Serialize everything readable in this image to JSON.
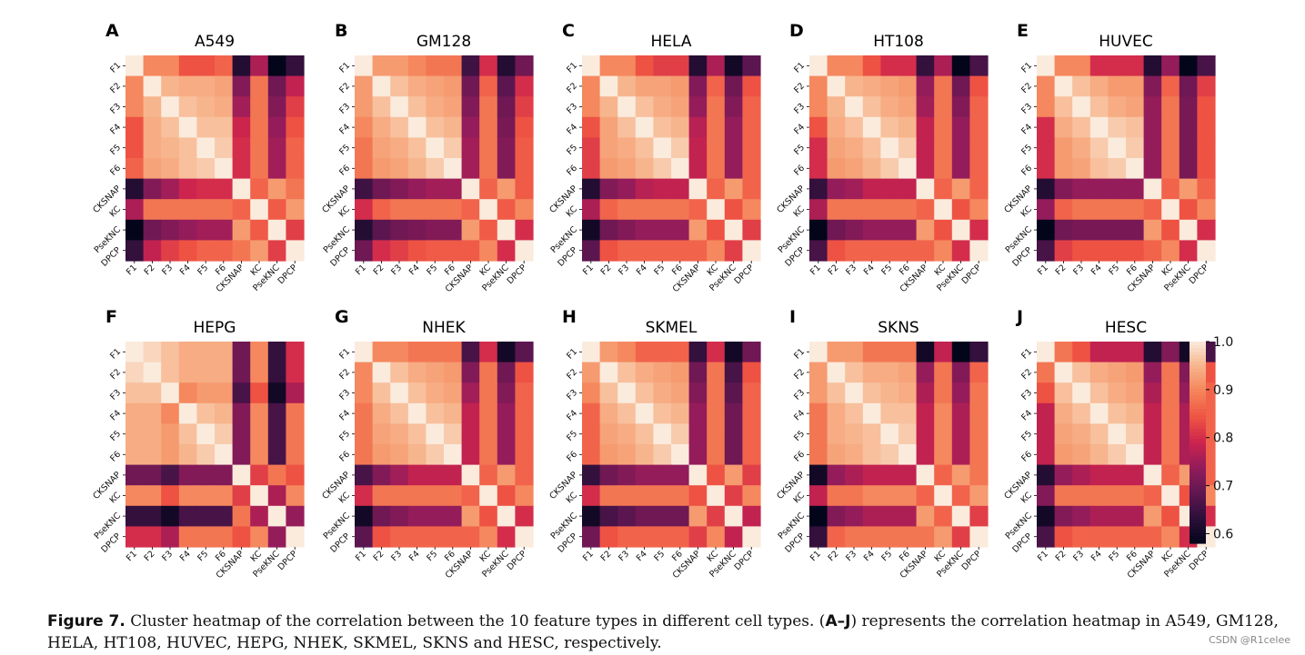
{
  "features": [
    "F1",
    "F2",
    "F3",
    "F4",
    "F5",
    "F6",
    "CKSNAP",
    "KC",
    "PseKNC",
    "DPCP"
  ],
  "colorbar": {
    "ticks": [
      "1.0",
      "0.9",
      "0.8",
      "0.7",
      "0.6"
    ],
    "vmin": 0.58,
    "vmax": 1.0
  },
  "chart_data": [
    {
      "type": "heatmap",
      "letter": "A",
      "title": "A549",
      "matrix": [
        [
          1,
          0.9,
          0.9,
          0.84,
          0.84,
          0.86,
          0.62,
          0.76,
          0.58,
          0.64
        ],
        [
          0.9,
          1,
          0.95,
          0.94,
          0.94,
          0.93,
          0.72,
          0.88,
          0.7,
          0.78
        ],
        [
          0.9,
          0.95,
          1,
          0.96,
          0.95,
          0.94,
          0.75,
          0.88,
          0.72,
          0.82
        ],
        [
          0.84,
          0.94,
          0.96,
          1,
          0.96,
          0.96,
          0.79,
          0.88,
          0.74,
          0.84
        ],
        [
          0.84,
          0.94,
          0.95,
          0.96,
          1,
          0.97,
          0.8,
          0.88,
          0.75,
          0.86
        ],
        [
          0.86,
          0.93,
          0.94,
          0.96,
          0.97,
          1,
          0.8,
          0.88,
          0.75,
          0.86
        ],
        [
          0.62,
          0.72,
          0.75,
          0.79,
          0.8,
          0.8,
          1,
          0.86,
          0.92,
          0.88
        ],
        [
          0.76,
          0.88,
          0.88,
          0.88,
          0.88,
          0.88,
          0.86,
          1,
          0.85,
          0.92
        ],
        [
          0.58,
          0.7,
          0.72,
          0.74,
          0.75,
          0.75,
          0.92,
          0.85,
          1,
          0.82
        ],
        [
          0.64,
          0.78,
          0.82,
          0.84,
          0.86,
          0.86,
          0.88,
          0.92,
          0.82,
          1
        ]
      ]
    },
    {
      "type": "heatmap",
      "letter": "B",
      "title": "GM128",
      "matrix": [
        [
          1,
          0.92,
          0.92,
          0.9,
          0.88,
          0.88,
          0.65,
          0.8,
          0.62,
          0.7
        ],
        [
          0.92,
          1,
          0.96,
          0.94,
          0.93,
          0.92,
          0.7,
          0.86,
          0.68,
          0.8
        ],
        [
          0.92,
          0.96,
          1,
          0.96,
          0.94,
          0.93,
          0.72,
          0.88,
          0.7,
          0.82
        ],
        [
          0.9,
          0.94,
          0.96,
          1,
          0.96,
          0.95,
          0.74,
          0.88,
          0.71,
          0.84
        ],
        [
          0.88,
          0.93,
          0.94,
          0.96,
          1,
          0.97,
          0.75,
          0.88,
          0.72,
          0.85
        ],
        [
          0.88,
          0.92,
          0.93,
          0.95,
          0.97,
          1,
          0.75,
          0.88,
          0.72,
          0.85
        ],
        [
          0.65,
          0.7,
          0.72,
          0.74,
          0.75,
          0.75,
          1,
          0.86,
          0.92,
          0.85
        ],
        [
          0.8,
          0.86,
          0.88,
          0.88,
          0.88,
          0.88,
          0.86,
          1,
          0.85,
          0.9
        ],
        [
          0.62,
          0.68,
          0.7,
          0.71,
          0.72,
          0.72,
          0.92,
          0.85,
          1,
          0.8
        ],
        [
          0.7,
          0.8,
          0.82,
          0.84,
          0.85,
          0.85,
          0.85,
          0.9,
          0.8,
          1
        ]
      ]
    },
    {
      "type": "heatmap",
      "letter": "C",
      "title": "HELA",
      "matrix": [
        [
          1,
          0.9,
          0.9,
          0.84,
          0.82,
          0.82,
          0.62,
          0.76,
          0.6,
          0.68
        ],
        [
          0.9,
          1,
          0.95,
          0.93,
          0.93,
          0.92,
          0.72,
          0.86,
          0.7,
          0.84
        ],
        [
          0.9,
          0.95,
          1,
          0.96,
          0.94,
          0.93,
          0.74,
          0.88,
          0.72,
          0.86
        ],
        [
          0.84,
          0.93,
          0.96,
          1,
          0.96,
          0.95,
          0.77,
          0.88,
          0.74,
          0.86
        ],
        [
          0.82,
          0.93,
          0.94,
          0.96,
          1,
          0.97,
          0.78,
          0.88,
          0.74,
          0.86
        ],
        [
          0.82,
          0.92,
          0.93,
          0.95,
          0.97,
          1,
          0.78,
          0.88,
          0.74,
          0.86
        ],
        [
          0.62,
          0.72,
          0.74,
          0.77,
          0.78,
          0.78,
          1,
          0.86,
          0.92,
          0.86
        ],
        [
          0.76,
          0.86,
          0.88,
          0.88,
          0.88,
          0.88,
          0.86,
          1,
          0.84,
          0.9
        ],
        [
          0.6,
          0.7,
          0.72,
          0.74,
          0.74,
          0.74,
          0.92,
          0.84,
          1,
          0.82
        ],
        [
          0.68,
          0.84,
          0.86,
          0.86,
          0.86,
          0.86,
          0.86,
          0.9,
          0.82,
          1
        ]
      ]
    },
    {
      "type": "heatmap",
      "letter": "D",
      "title": "HT108",
      "matrix": [
        [
          1,
          0.9,
          0.9,
          0.84,
          0.8,
          0.8,
          0.64,
          0.76,
          0.58,
          0.66
        ],
        [
          0.9,
          1,
          0.95,
          0.94,
          0.93,
          0.92,
          0.74,
          0.88,
          0.7,
          0.84
        ],
        [
          0.9,
          0.95,
          1,
          0.96,
          0.94,
          0.93,
          0.75,
          0.88,
          0.72,
          0.86
        ],
        [
          0.84,
          0.94,
          0.96,
          1,
          0.96,
          0.95,
          0.78,
          0.88,
          0.74,
          0.86
        ],
        [
          0.8,
          0.93,
          0.94,
          0.96,
          1,
          0.97,
          0.78,
          0.88,
          0.74,
          0.86
        ],
        [
          0.8,
          0.92,
          0.93,
          0.95,
          0.97,
          1,
          0.78,
          0.88,
          0.74,
          0.86
        ],
        [
          0.64,
          0.74,
          0.75,
          0.78,
          0.78,
          0.78,
          1,
          0.86,
          0.92,
          0.86
        ],
        [
          0.76,
          0.88,
          0.88,
          0.88,
          0.88,
          0.88,
          0.86,
          1,
          0.84,
          0.9
        ],
        [
          0.58,
          0.7,
          0.72,
          0.74,
          0.74,
          0.74,
          0.92,
          0.84,
          1,
          0.8
        ],
        [
          0.66,
          0.84,
          0.86,
          0.86,
          0.86,
          0.86,
          0.86,
          0.9,
          0.8,
          1
        ]
      ]
    },
    {
      "type": "heatmap",
      "letter": "E",
      "title": "HUVEC",
      "matrix": [
        [
          1,
          0.9,
          0.9,
          0.8,
          0.8,
          0.8,
          0.62,
          0.74,
          0.58,
          0.66
        ],
        [
          0.9,
          1,
          0.96,
          0.94,
          0.92,
          0.92,
          0.72,
          0.86,
          0.7,
          0.82
        ],
        [
          0.9,
          0.96,
          1,
          0.96,
          0.94,
          0.93,
          0.74,
          0.88,
          0.71,
          0.84
        ],
        [
          0.8,
          0.94,
          0.96,
          1,
          0.97,
          0.96,
          0.74,
          0.88,
          0.71,
          0.84
        ],
        [
          0.8,
          0.92,
          0.94,
          0.97,
          1,
          0.97,
          0.74,
          0.88,
          0.71,
          0.84
        ],
        [
          0.8,
          0.92,
          0.93,
          0.96,
          0.97,
          1,
          0.74,
          0.88,
          0.71,
          0.84
        ],
        [
          0.62,
          0.72,
          0.74,
          0.74,
          0.74,
          0.74,
          1,
          0.86,
          0.92,
          0.86
        ],
        [
          0.74,
          0.86,
          0.88,
          0.88,
          0.88,
          0.88,
          0.86,
          1,
          0.84,
          0.9
        ],
        [
          0.58,
          0.7,
          0.71,
          0.71,
          0.71,
          0.71,
          0.92,
          0.84,
          1,
          0.8
        ],
        [
          0.66,
          0.82,
          0.84,
          0.84,
          0.84,
          0.84,
          0.86,
          0.9,
          0.8,
          1
        ]
      ]
    },
    {
      "type": "heatmap",
      "letter": "F",
      "title": "HEPG",
      "matrix": [
        [
          1,
          0.98,
          0.96,
          0.94,
          0.94,
          0.94,
          0.7,
          0.9,
          0.64,
          0.8
        ],
        [
          0.98,
          1,
          0.96,
          0.94,
          0.94,
          0.94,
          0.7,
          0.9,
          0.64,
          0.8
        ],
        [
          0.96,
          0.96,
          1,
          0.9,
          0.92,
          0.92,
          0.66,
          0.84,
          0.6,
          0.76
        ],
        [
          0.94,
          0.94,
          0.9,
          1,
          0.96,
          0.95,
          0.72,
          0.9,
          0.66,
          0.88
        ],
        [
          0.94,
          0.94,
          0.92,
          0.96,
          1,
          0.97,
          0.72,
          0.9,
          0.66,
          0.88
        ],
        [
          0.94,
          0.94,
          0.92,
          0.95,
          0.97,
          1,
          0.72,
          0.9,
          0.66,
          0.88
        ],
        [
          0.7,
          0.7,
          0.66,
          0.72,
          0.72,
          0.72,
          1,
          0.82,
          0.88,
          0.84
        ],
        [
          0.9,
          0.9,
          0.84,
          0.9,
          0.9,
          0.9,
          0.82,
          1,
          0.76,
          0.9
        ],
        [
          0.64,
          0.64,
          0.6,
          0.66,
          0.66,
          0.66,
          0.88,
          0.76,
          1,
          0.74
        ],
        [
          0.8,
          0.8,
          0.76,
          0.88,
          0.88,
          0.88,
          0.84,
          0.9,
          0.74,
          1
        ]
      ]
    },
    {
      "type": "heatmap",
      "letter": "G",
      "title": "NHEK",
      "matrix": [
        [
          1,
          0.9,
          0.9,
          0.88,
          0.88,
          0.88,
          0.66,
          0.8,
          0.6,
          0.68
        ],
        [
          0.9,
          1,
          0.96,
          0.94,
          0.93,
          0.92,
          0.72,
          0.88,
          0.7,
          0.84
        ],
        [
          0.9,
          0.96,
          1,
          0.96,
          0.94,
          0.93,
          0.75,
          0.88,
          0.72,
          0.86
        ],
        [
          0.88,
          0.94,
          0.96,
          1,
          0.96,
          0.95,
          0.78,
          0.88,
          0.74,
          0.86
        ],
        [
          0.88,
          0.93,
          0.94,
          0.96,
          1,
          0.97,
          0.78,
          0.88,
          0.74,
          0.86
        ],
        [
          0.88,
          0.92,
          0.93,
          0.95,
          0.97,
          1,
          0.78,
          0.88,
          0.74,
          0.86
        ],
        [
          0.66,
          0.72,
          0.75,
          0.78,
          0.78,
          0.78,
          1,
          0.86,
          0.92,
          0.86
        ],
        [
          0.8,
          0.88,
          0.88,
          0.88,
          0.88,
          0.88,
          0.86,
          1,
          0.84,
          0.9
        ],
        [
          0.6,
          0.7,
          0.72,
          0.74,
          0.74,
          0.74,
          0.92,
          0.84,
          1,
          0.8
        ],
        [
          0.68,
          0.84,
          0.86,
          0.86,
          0.86,
          0.86,
          0.86,
          0.9,
          0.8,
          1
        ]
      ]
    },
    {
      "type": "heatmap",
      "letter": "H",
      "title": "SKMEL",
      "matrix": [
        [
          1,
          0.92,
          0.9,
          0.86,
          0.86,
          0.86,
          0.64,
          0.8,
          0.6,
          0.7
        ],
        [
          0.92,
          1,
          0.96,
          0.94,
          0.93,
          0.92,
          0.7,
          0.88,
          0.66,
          0.84
        ],
        [
          0.9,
          0.96,
          1,
          0.96,
          0.94,
          0.93,
          0.72,
          0.88,
          0.68,
          0.86
        ],
        [
          0.86,
          0.94,
          0.96,
          1,
          0.96,
          0.95,
          0.74,
          0.88,
          0.7,
          0.86
        ],
        [
          0.86,
          0.93,
          0.94,
          0.96,
          1,
          0.97,
          0.74,
          0.88,
          0.7,
          0.86
        ],
        [
          0.86,
          0.92,
          0.93,
          0.95,
          0.97,
          1,
          0.74,
          0.88,
          0.7,
          0.86
        ],
        [
          0.64,
          0.7,
          0.72,
          0.74,
          0.74,
          0.74,
          1,
          0.84,
          0.92,
          0.82
        ],
        [
          0.8,
          0.88,
          0.88,
          0.88,
          0.88,
          0.88,
          0.84,
          1,
          0.82,
          0.9
        ],
        [
          0.6,
          0.66,
          0.68,
          0.7,
          0.7,
          0.7,
          0.92,
          0.82,
          1,
          0.78
        ],
        [
          0.7,
          0.84,
          0.86,
          0.86,
          0.86,
          0.86,
          0.82,
          0.9,
          0.78,
          1
        ]
      ]
    },
    {
      "type": "heatmap",
      "letter": "I",
      "title": "SKNS",
      "matrix": [
        [
          1,
          0.92,
          0.92,
          0.88,
          0.88,
          0.88,
          0.6,
          0.78,
          0.58,
          0.64
        ],
        [
          0.92,
          1,
          0.96,
          0.94,
          0.94,
          0.93,
          0.74,
          0.88,
          0.72,
          0.86
        ],
        [
          0.92,
          0.96,
          1,
          0.96,
          0.95,
          0.94,
          0.76,
          0.88,
          0.74,
          0.88
        ],
        [
          0.88,
          0.94,
          0.96,
          1,
          0.96,
          0.96,
          0.78,
          0.9,
          0.76,
          0.88
        ],
        [
          0.88,
          0.94,
          0.95,
          0.96,
          1,
          0.97,
          0.78,
          0.9,
          0.76,
          0.88
        ],
        [
          0.88,
          0.93,
          0.94,
          0.96,
          0.97,
          1,
          0.78,
          0.9,
          0.76,
          0.88
        ],
        [
          0.6,
          0.74,
          0.76,
          0.78,
          0.78,
          0.78,
          1,
          0.86,
          0.92,
          0.88
        ],
        [
          0.78,
          0.88,
          0.88,
          0.9,
          0.9,
          0.9,
          0.86,
          1,
          0.86,
          0.92
        ],
        [
          0.58,
          0.72,
          0.74,
          0.76,
          0.76,
          0.76,
          0.92,
          0.86,
          1,
          0.82
        ],
        [
          0.64,
          0.86,
          0.88,
          0.88,
          0.88,
          0.88,
          0.88,
          0.92,
          0.82,
          1
        ]
      ]
    },
    {
      "type": "heatmap",
      "letter": "J",
      "title": "HESC",
      "matrix": [
        [
          1,
          0.88,
          0.84,
          0.78,
          0.78,
          0.78,
          0.62,
          0.72,
          0.6,
          0.66
        ],
        [
          0.88,
          1,
          0.96,
          0.94,
          0.93,
          0.92,
          0.74,
          0.88,
          0.72,
          0.84
        ],
        [
          0.84,
          0.96,
          1,
          0.96,
          0.94,
          0.93,
          0.76,
          0.88,
          0.74,
          0.86
        ],
        [
          0.78,
          0.94,
          0.96,
          1,
          0.96,
          0.95,
          0.78,
          0.88,
          0.76,
          0.86
        ],
        [
          0.78,
          0.93,
          0.94,
          0.96,
          1,
          0.97,
          0.78,
          0.88,
          0.76,
          0.86
        ],
        [
          0.78,
          0.92,
          0.93,
          0.95,
          0.97,
          1,
          0.78,
          0.88,
          0.76,
          0.86
        ],
        [
          0.62,
          0.74,
          0.76,
          0.78,
          0.78,
          0.78,
          1,
          0.86,
          0.92,
          0.86
        ],
        [
          0.72,
          0.88,
          0.88,
          0.88,
          0.88,
          0.88,
          0.86,
          1,
          0.84,
          0.9
        ],
        [
          0.6,
          0.72,
          0.74,
          0.76,
          0.76,
          0.76,
          0.92,
          0.84,
          1,
          0.8
        ],
        [
          0.66,
          0.84,
          0.86,
          0.86,
          0.86,
          0.86,
          0.86,
          0.9,
          0.8,
          1
        ]
      ]
    }
  ],
  "caption": {
    "label": "Figure 7.",
    "text_1": " Cluster heatmap of the correlation between the 10 feature types in different cell types. (",
    "range": "A–J",
    "text_2": ") represents the correlation heatmap in A549, GM128, HELA, HT108, HUVEC, HEPG, NHEK, SKMEL, SKNS and HESC, respectively."
  },
  "watermark": "CSDN @R1celee"
}
